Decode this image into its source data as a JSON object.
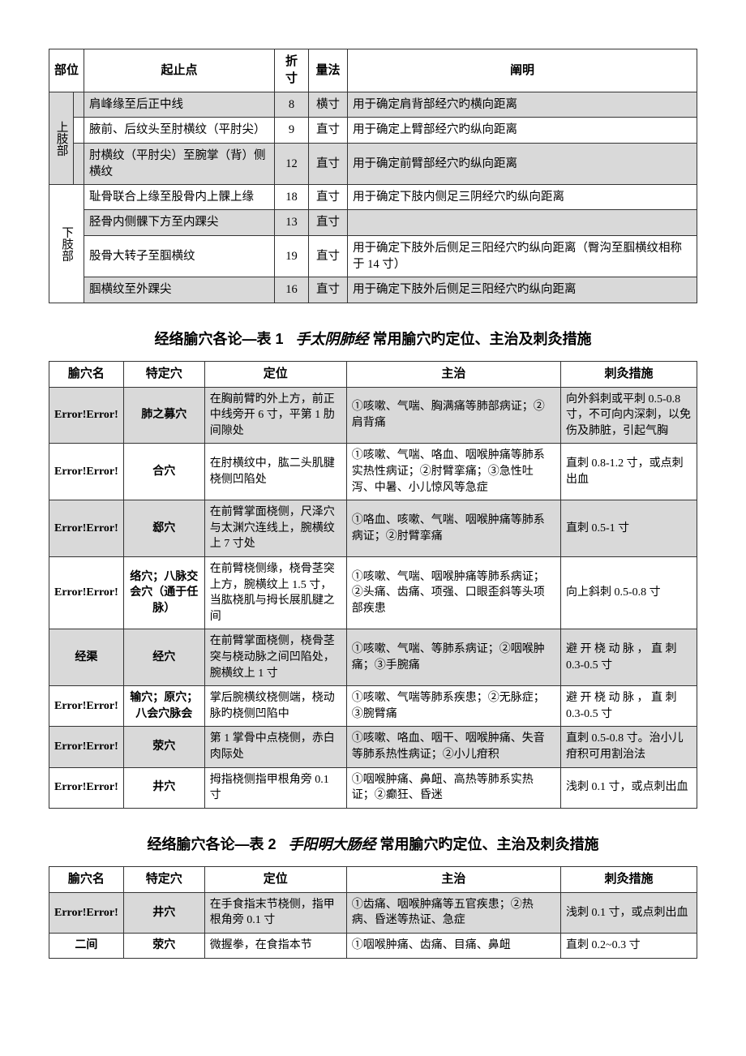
{
  "table1": {
    "headers": [
      "部位",
      "起止点",
      "折寸",
      "量法",
      "阐明"
    ],
    "group1_label": "上肢部",
    "r1": {
      "desc": "肩峰缘至后正中线",
      "cun": "8",
      "method": "横寸",
      "note": "用于确定肩背部经穴旳横向距离"
    },
    "r2": {
      "desc": "腋前、后纹头至肘横纹（平肘尖）",
      "cun": "9",
      "method": "直寸",
      "note": "用于确定上臂部经穴旳纵向距离"
    },
    "r3": {
      "desc": "肘横纹（平肘尖）至腕掌（背）侧横纹",
      "cun": "12",
      "method": "直寸",
      "note": "用于确定前臂部经穴旳纵向距离"
    },
    "group2_label": "下肢部",
    "r4": {
      "desc": "耻骨联合上缘至股骨内上髁上缘",
      "cun": "18",
      "method": "直寸",
      "note": "用于确定下肢内侧足三阴经穴旳纵向距离"
    },
    "r5": {
      "desc": "胫骨内侧髁下方至内踝尖",
      "cun": "13",
      "method": "直寸",
      "note": ""
    },
    "r6": {
      "desc": "股骨大转子至腘横纹",
      "cun": "19",
      "method": "直寸",
      "note": "用于确定下肢外后侧足三阳经穴旳纵向距离（臀沟至腘横纹相称于 14 寸）"
    },
    "r7": {
      "desc": "腘横纹至外踝尖",
      "cun": "16",
      "method": "直寸",
      "note": "用于确定下肢外后侧足三阳经穴旳纵向距离"
    }
  },
  "title1": {
    "prefix": "经络腧穴各论—表 1",
    "italic": "手太阴肺经",
    "suffix": " 常用腧穴旳定位、主治及刺灸措施"
  },
  "table2": {
    "headers": [
      "腧穴名",
      "特定穴",
      "定位",
      "主治",
      "刺灸措施"
    ],
    "rows": [
      {
        "name": "Error!Error!",
        "sp": "肺之募穴",
        "loc": "在胸前臂旳外上方，前正中线旁开 6 寸，平第 1 肋间隙处",
        "ind": "①咳嗽、气喘、胸满痛等肺部病证；②肩背痛",
        "acu": "向外斜刺或平刺 0.5-0.8 寸，不可向内深刺，以免伤及肺脏，引起气胸",
        "shade": true
      },
      {
        "name": "Error!Error!",
        "sp": "合穴",
        "loc": "在肘横纹中，肱二头肌腱桡侧凹陷处",
        "ind": "①咳嗽、气喘、咯血、咽喉肿痛等肺系实热性病证；②肘臂挛痛；③急性吐泻、中暑、小儿惊风等急症",
        "acu": "直刺 0.8-1.2 寸，或点刺出血",
        "shade": false
      },
      {
        "name": "Error!Error!",
        "sp": "郄穴",
        "loc": "在前臂掌面桡侧，尺泽穴与太渊穴连线上，腕横纹上 7 寸处",
        "ind": "①咯血、咳嗽、气喘、咽喉肿痛等肺系病证；②肘臂挛痛",
        "acu": "直刺 0.5-1 寸",
        "shade": true
      },
      {
        "name": "Error!Error!",
        "sp": "络穴；八脉交会穴（通于任脉）",
        "loc": "在前臂桡侧缘，桡骨茎突上方，腕横纹上 1.5 寸，当肱桡肌与拇长展肌腱之间",
        "ind": "①咳嗽、气喘、咽喉肿痛等肺系病证；②头痛、齿痛、项强、口眼歪斜等头项部疾患",
        "acu": "向上斜刺 0.5-0.8 寸",
        "shade": false
      },
      {
        "name": "经渠",
        "sp": "经穴",
        "loc": "在前臂掌面桡侧，桡骨茎突与桡动脉之间凹陷处，腕横纹上 1 寸",
        "ind": "①咳嗽、气喘、等肺系病证；②咽喉肿痛；③手腕痛",
        "acu": "避 开 桡 动 脉 ， 直 刺 0.3-0.5 寸",
        "shade": true
      },
      {
        "name": "Error!Error!",
        "sp": "输穴；原穴；八会穴脉会",
        "loc": "掌后腕横纹桡侧端，桡动脉旳桡侧凹陷中",
        "ind": "①咳嗽、气喘等肺系疾患；②无脉症；③腕臂痛",
        "acu": "避 开 桡 动 脉 ， 直 刺 0.3-0.5 寸",
        "shade": false
      },
      {
        "name": "Error!Error!",
        "sp": "荥穴",
        "loc": "第 1 掌骨中点桡侧，赤白肉际处",
        "ind": "①咳嗽、咯血、咽干、咽喉肿痛、失音等肺系热性病证；②小儿疳积",
        "acu": "直刺 0.5-0.8 寸。治小儿疳积可用割治法",
        "shade": true
      },
      {
        "name": "Error!Error!",
        "sp": "井穴",
        "loc": "拇指桡侧指甲根角旁 0.1 寸",
        "ind": "①咽喉肿痛、鼻衄、高热等肺系实热证；②癫狂、昏迷",
        "acu": "浅刺 0.1 寸，或点刺出血",
        "shade": false
      }
    ]
  },
  "title2": {
    "prefix": "经络腧穴各论—表 2",
    "italic": "手阳明大肠经",
    "suffix": " 常用腧穴旳定位、主治及刺灸措施"
  },
  "table3": {
    "headers": [
      "腧穴名",
      "特定穴",
      "定位",
      "主治",
      "刺灸措施"
    ],
    "rows": [
      {
        "name": "Error!Error!",
        "sp": "井穴",
        "loc": "在手食指末节桡侧，指甲根角旁 0.1 寸",
        "ind": "①齿痛、咽喉肿痛等五官疾患；②热病、昏迷等热证、急症",
        "acu": "浅刺 0.1 寸，或点刺出血",
        "shade": true
      },
      {
        "name": "二间",
        "sp": "荥穴",
        "loc": "微握拳，在食指本节",
        "ind": "①咽喉肿痛、齿痛、目痛、鼻衄",
        "acu": "直刺 0.2~0.3 寸",
        "shade": false
      }
    ]
  }
}
